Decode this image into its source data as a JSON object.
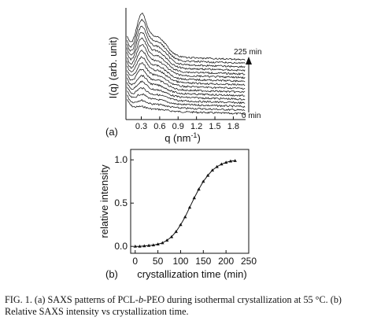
{
  "figure": {
    "panel_a_label": "(a)",
    "panel_b_label": "(b)"
  },
  "caption": {
    "prefix": "FIG. 1.",
    "part1": " (a) SAXS patterns of PCL-",
    "italic": "b",
    "part2": "-PEO during isothermal crystallization at 55 °C. (b) Relative SAXS intensity vs crystallization time."
  },
  "chart_data": [
    {
      "type": "line",
      "panel": "(a)",
      "xlabel": "q (nm",
      "xlabel_sup": "-1",
      "xlabel_close": ")",
      "ylabel": "I(q) (arb. unit)",
      "xlim": [
        0.05,
        2.0
      ],
      "xticks": [
        "0.3",
        "0.6",
        "0.9",
        "1.2",
        "1.5",
        "1.8"
      ],
      "yticks": [],
      "time_arrow": {
        "top_label": "225 min",
        "bottom_label": "0 min"
      },
      "series_count": 16,
      "peak_position_q": 0.3,
      "notes_none": ""
    },
    {
      "type": "scatter",
      "panel": "(b)",
      "xlabel": "crystallization time (min)",
      "ylabel": "relative intensity",
      "xlim": [
        -10,
        250
      ],
      "ylim": [
        -0.08,
        1.12
      ],
      "xticks": [
        "0",
        "50",
        "100",
        "150",
        "200",
        "250"
      ],
      "yticks": [
        "0.0",
        "0.5",
        "1.0"
      ],
      "x": [
        0,
        10,
        20,
        30,
        40,
        50,
        60,
        70,
        80,
        90,
        100,
        110,
        120,
        130,
        140,
        150,
        160,
        170,
        180,
        190,
        200,
        210,
        220
      ],
      "y": [
        0.0,
        0.0,
        0.005,
        0.01,
        0.015,
        0.025,
        0.04,
        0.07,
        0.11,
        0.17,
        0.25,
        0.34,
        0.45,
        0.56,
        0.66,
        0.75,
        0.82,
        0.88,
        0.92,
        0.95,
        0.97,
        0.985,
        0.99
      ]
    }
  ]
}
